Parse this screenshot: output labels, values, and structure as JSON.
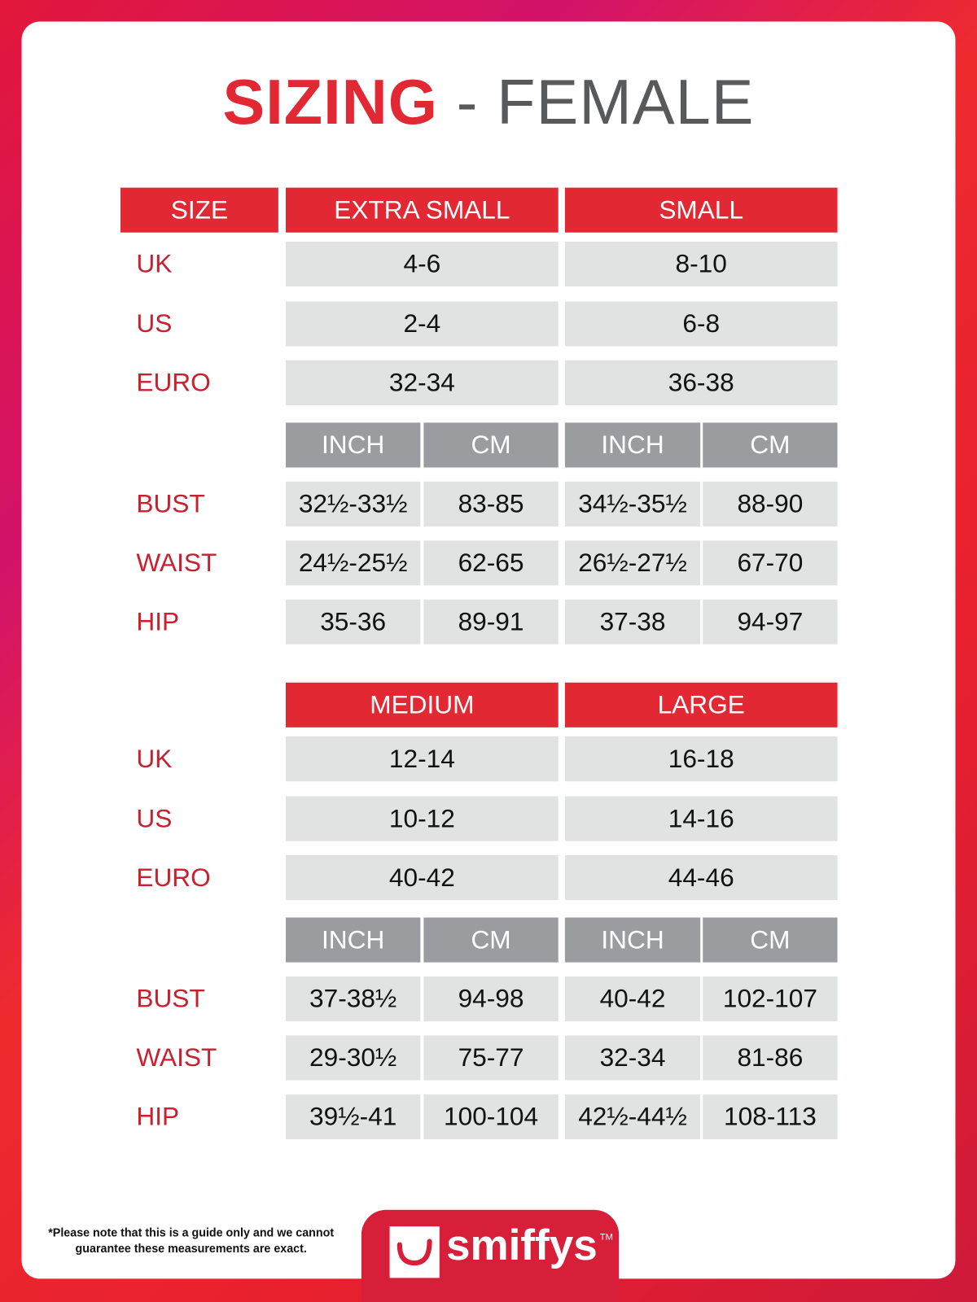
{
  "title": {
    "emphasis": "SIZING",
    "rest": " - FEMALE"
  },
  "size_label": "SIZE",
  "units": [
    "INCH",
    "CM"
  ],
  "row_labels": {
    "uk": "UK",
    "us": "US",
    "euro": "EURO",
    "bust": "BUST",
    "waist": "WAIST",
    "hip": "HIP"
  },
  "tables": [
    {
      "sizes": [
        {
          "name": "EXTRA SMALL",
          "uk": "4-6",
          "us": "2-4",
          "euro": "32-34",
          "bust": [
            "32½-33½",
            "83-85"
          ],
          "waist": [
            "24½-25½",
            "62-65"
          ],
          "hip": [
            "35-36",
            "89-91"
          ]
        },
        {
          "name": "SMALL",
          "uk": "8-10",
          "us": "6-8",
          "euro": "36-38",
          "bust": [
            "34½-35½",
            "88-90"
          ],
          "waist": [
            "26½-27½",
            "67-70"
          ],
          "hip": [
            "37-38",
            "94-97"
          ]
        }
      ]
    },
    {
      "sizes": [
        {
          "name": "MEDIUM",
          "uk": "12-14",
          "us": "10-12",
          "euro": "40-42",
          "bust": [
            "37-38½",
            "94-98"
          ],
          "waist": [
            "29-30½",
            "75-77"
          ],
          "hip": [
            "39½-41",
            "100-104"
          ]
        },
        {
          "name": "LARGE",
          "uk": "16-18",
          "us": "14-16",
          "euro": "44-46",
          "bust": [
            "40-42",
            "102-107"
          ],
          "waist": [
            "32-34",
            "81-86"
          ],
          "hip": [
            "42½-44½",
            "108-113"
          ]
        }
      ]
    }
  ],
  "footer": {
    "note": "*Please note that this is a guide only and we cannot guarantee these measurements are exact.",
    "brand": "smiffys",
    "tm": "TM"
  },
  "colors": {
    "brand_red": "#e12833",
    "unit_gray": "#9a9c9f",
    "cell_gray": "#e1e2e2",
    "label_red": "#c8202e"
  }
}
